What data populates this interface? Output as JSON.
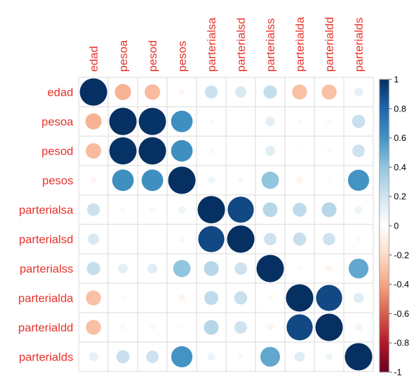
{
  "chart_data": {
    "type": "heatmap",
    "style": "correlation circles (size and color scale with coefficient)",
    "variables": [
      "edad",
      "pesoa",
      "pesod",
      "pesos",
      "parterialsa",
      "parterialsd",
      "parterialss",
      "parterialda",
      "parterialdd",
      "parterialds"
    ],
    "matrix": [
      [
        1.0,
        -0.35,
        -0.32,
        -0.05,
        0.22,
        0.17,
        0.24,
        -0.3,
        -0.3,
        0.11
      ],
      [
        -0.35,
        1.0,
        0.99,
        0.62,
        0.04,
        0.0,
        0.12,
        0.03,
        0.04,
        0.23
      ],
      [
        -0.32,
        0.99,
        1.0,
        0.62,
        0.04,
        0.02,
        0.13,
        0.02,
        0.04,
        0.21
      ],
      [
        -0.05,
        0.62,
        0.62,
        1.0,
        0.07,
        0.05,
        0.4,
        -0.06,
        -0.03,
        0.6
      ],
      [
        0.22,
        0.04,
        0.04,
        0.07,
        1.0,
        0.91,
        0.29,
        0.26,
        0.29,
        0.08
      ],
      [
        0.17,
        0.0,
        0.02,
        0.05,
        0.91,
        1.0,
        0.21,
        0.23,
        0.21,
        0.04
      ],
      [
        0.24,
        0.12,
        0.13,
        0.4,
        0.29,
        0.21,
        1.0,
        -0.04,
        -0.06,
        0.52
      ],
      [
        -0.3,
        0.03,
        0.02,
        -0.06,
        0.26,
        0.23,
        -0.04,
        1.0,
        0.91,
        0.14
      ],
      [
        -0.3,
        0.04,
        0.04,
        -0.03,
        0.29,
        0.21,
        -0.06,
        0.91,
        1.0,
        0.07
      ],
      [
        0.11,
        0.23,
        0.21,
        0.6,
        0.08,
        0.04,
        0.52,
        0.14,
        0.07,
        1.0
      ]
    ],
    "colorbar": {
      "ticks": [
        "1",
        "0.8",
        "0.6",
        "0.4",
        "0.2",
        "0",
        "-0.2",
        "-0.4",
        "-0.6",
        "-0.8",
        "-1"
      ],
      "range": [
        -1,
        1
      ]
    },
    "label_color": "#e8312a",
    "palette_neg": "#67001f",
    "palette_pos": "#053061",
    "grid": true
  }
}
